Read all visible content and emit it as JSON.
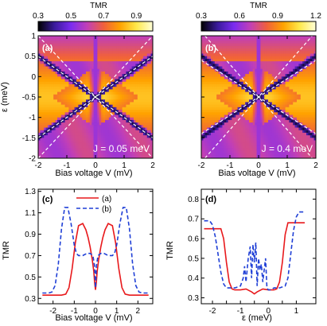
{
  "colors": {
    "colormap": [
      "#000000",
      "#3a1a9c",
      "#7b2cf0",
      "#c23fb6",
      "#f0603c",
      "#ffa200",
      "#ffe84a",
      "#ffffd8"
    ],
    "line_a": "#e8191c",
    "line_b": "#1f3fd6",
    "dashed_overlay": "#ffffff"
  },
  "chart_data": [
    {
      "id": "a",
      "panel_label": "(a)",
      "type": "heatmap",
      "colorbar": {
        "title": "TMR",
        "range": [
          0.3,
          1.0
        ],
        "ticks": [
          "0.3",
          "0.5",
          "0.7",
          "0.9"
        ],
        "tick_values": [
          0.3,
          0.5,
          0.7,
          0.9
        ]
      },
      "xlabel": "Bias voltage V (mV)",
      "ylabel": "ε (meV)",
      "xlim": [
        -2,
        2
      ],
      "ylim": [
        -2,
        1
      ],
      "xticks": [
        {
          "v": -2,
          "t": "-2"
        },
        {
          "v": -1,
          "t": "-1"
        },
        {
          "v": 0,
          "t": "0"
        },
        {
          "v": 1,
          "t": "1"
        },
        {
          "v": 2,
          "t": "2"
        }
      ],
      "yticks": [
        {
          "v": 1,
          "t": "1"
        },
        {
          "v": 0.5,
          "t": "0.5"
        },
        {
          "v": 0,
          "t": "0"
        },
        {
          "v": -0.5,
          "t": "-0.5"
        },
        {
          "v": -1,
          "t": "-1"
        },
        {
          "v": -1.5,
          "t": "-1.5"
        },
        {
          "v": -2,
          "t": "-2"
        }
      ],
      "annotation": "J = 0.05 meV",
      "center_level": -0.5,
      "dashed_lines": [
        {
          "x": [
            -2,
            2
          ],
          "y": [
            -2.0,
            1.0
          ]
        },
        {
          "x": [
            -2,
            2
          ],
          "y": [
            1.0,
            -2.0
          ]
        },
        {
          "x": [
            -2,
            2
          ],
          "y": [
            -1.5,
            0.5
          ]
        },
        {
          "x": [
            -2,
            2
          ],
          "y": [
            0.5,
            -1.5
          ]
        }
      ]
    },
    {
      "id": "b",
      "panel_label": "(b)",
      "type": "heatmap",
      "colorbar": {
        "title": "TMR",
        "range": [
          0.3,
          1.2
        ],
        "ticks": [
          "0.3",
          "0.6",
          "0.9",
          "1.2"
        ],
        "tick_values": [
          0.3,
          0.6,
          0.9,
          1.2
        ]
      },
      "xlabel": "Bias voltage V (mV)",
      "ylabel": "",
      "xlim": [
        -2,
        2
      ],
      "ylim": [
        -2,
        1
      ],
      "xticks": [
        {
          "v": -2,
          "t": "-2"
        },
        {
          "v": -1,
          "t": "-1"
        },
        {
          "v": 0,
          "t": "0"
        },
        {
          "v": 1,
          "t": "1"
        },
        {
          "v": 2,
          "t": "2"
        }
      ],
      "yticks": [],
      "annotation": "J = 0.4 meV",
      "center_level": -0.5,
      "dashed_lines": [
        {
          "x": [
            -2,
            2
          ],
          "y": [
            -2.1,
            1.1
          ]
        },
        {
          "x": [
            -2,
            2
          ],
          "y": [
            1.1,
            -2.1
          ]
        },
        {
          "x": [
            -2,
            2
          ],
          "y": [
            -1.4,
            0.4
          ]
        },
        {
          "x": [
            -2,
            2
          ],
          "y": [
            0.4,
            -1.4
          ]
        }
      ]
    },
    {
      "id": "c",
      "panel_label": "(c)",
      "type": "line",
      "xlabel": "Bias voltage V (mV)",
      "ylabel": "TMR",
      "xlim": [
        -2.7,
        2.7
      ],
      "ylim": [
        0.25,
        1.32
      ],
      "xticks": [
        {
          "v": -2,
          "t": "-2"
        },
        {
          "v": -1,
          "t": "-1"
        },
        {
          "v": 0,
          "t": "0"
        },
        {
          "v": 1,
          "t": "1"
        },
        {
          "v": 2,
          "t": "2"
        }
      ],
      "yticks": [
        {
          "v": 0.3,
          "t": "0.3"
        },
        {
          "v": 0.5,
          "t": "0.5"
        },
        {
          "v": 0.7,
          "t": "0.7"
        },
        {
          "v": 0.9,
          "t": "0.9"
        },
        {
          "v": 1.1,
          "t": "1.1"
        },
        {
          "v": 1.3,
          "t": "1.3"
        }
      ],
      "legend_position": "top-right",
      "series": [
        {
          "name": "(a)",
          "style": "solid",
          "x": [
            -2.5,
            -1.6,
            -1.4,
            -1.25,
            -1.1,
            -0.95,
            -0.8,
            -0.6,
            -0.45,
            -0.35,
            -0.25,
            -0.15,
            -0.08,
            -0.04,
            0.0,
            0.04,
            0.08,
            0.15,
            0.25,
            0.35,
            0.45,
            0.6,
            0.8,
            0.95,
            1.1,
            1.25,
            1.4,
            1.6,
            2.5
          ],
          "y": [
            0.33,
            0.33,
            0.34,
            0.4,
            0.58,
            0.82,
            0.98,
            1.0,
            0.94,
            0.87,
            0.78,
            0.66,
            0.55,
            0.45,
            0.38,
            0.45,
            0.55,
            0.66,
            0.78,
            0.87,
            0.94,
            1.0,
            0.98,
            0.82,
            0.58,
            0.4,
            0.34,
            0.33,
            0.33
          ]
        },
        {
          "name": "(b)",
          "style": "dashed",
          "x": [
            -2.5,
            -2.2,
            -2.05,
            -1.9,
            -1.75,
            -1.6,
            -1.45,
            -1.3,
            -1.15,
            -1.0,
            -0.9,
            -0.8,
            -0.6,
            -0.4,
            -0.25,
            -0.12,
            -0.04,
            0.0,
            0.04,
            0.12,
            0.25,
            0.4,
            0.6,
            0.8,
            0.9,
            1.0,
            1.15,
            1.3,
            1.45,
            1.6,
            1.75,
            1.9,
            2.05,
            2.2,
            2.5
          ],
          "y": [
            0.35,
            0.35,
            0.36,
            0.42,
            0.62,
            0.95,
            1.15,
            1.15,
            1.0,
            0.8,
            0.72,
            0.7,
            0.7,
            0.72,
            0.72,
            0.7,
            0.6,
            0.4,
            0.6,
            0.7,
            0.72,
            0.72,
            0.7,
            0.7,
            0.72,
            0.8,
            1.0,
            1.15,
            1.15,
            0.95,
            0.62,
            0.42,
            0.36,
            0.35,
            0.35
          ]
        }
      ]
    },
    {
      "id": "d",
      "panel_label": "(d)",
      "type": "line",
      "xlabel": "ε (meV)",
      "ylabel": "TMR",
      "xlim": [
        -2.4,
        1.7
      ],
      "ylim": [
        0.27,
        0.85
      ],
      "xticks": [
        {
          "v": -2,
          "t": "-2"
        },
        {
          "v": -1.5,
          "t": "-1.5"
        },
        {
          "v": -1,
          "t": "-1"
        },
        {
          "v": -0.5,
          "t": "-0.5"
        },
        {
          "v": 0,
          "t": "0"
        },
        {
          "v": 0.5,
          "t": "0.5"
        },
        {
          "v": 1,
          "t": "1"
        }
      ],
      "xtick_labels_shown": [
        {
          "v": -2,
          "t": "-2"
        },
        {
          "v": -1,
          "t": "-1"
        },
        {
          "v": 0,
          "t": "0"
        },
        {
          "v": 1,
          "t": "1"
        }
      ],
      "yticks": [
        {
          "v": 0.3,
          "t": "0.3"
        },
        {
          "v": 0.4,
          "t": "0.4"
        },
        {
          "v": 0.5,
          "t": "0.5"
        },
        {
          "v": 0.6,
          "t": "0.6"
        },
        {
          "v": 0.7,
          "t": "0.7"
        },
        {
          "v": 0.8,
          "t": "0.8"
        }
      ],
      "series": [
        {
          "name": "(a)",
          "style": "solid",
          "x": [
            -2.3,
            -1.7,
            -1.6,
            -1.5,
            -1.4,
            -1.3,
            -1.2,
            -1.0,
            -0.8,
            -0.6,
            -0.5,
            -0.4,
            -0.2,
            0.0,
            0.2,
            0.3,
            0.4,
            0.5,
            0.6,
            0.7,
            1.3
          ],
          "y": [
            0.65,
            0.65,
            0.6,
            0.48,
            0.38,
            0.345,
            0.34,
            0.34,
            0.345,
            0.33,
            0.32,
            0.33,
            0.345,
            0.34,
            0.34,
            0.345,
            0.38,
            0.48,
            0.62,
            0.68,
            0.68
          ]
        },
        {
          "name": "(b)",
          "style": "dashed",
          "x": [
            -2.3,
            -2.1,
            -2.0,
            -1.9,
            -1.8,
            -1.7,
            -1.6,
            -1.5,
            -1.4,
            -1.2,
            -1.0,
            -0.9,
            -0.85,
            -0.8,
            -0.72,
            -0.65,
            -0.6,
            -0.55,
            -0.5,
            -0.45,
            -0.4,
            -0.35,
            -0.3,
            -0.25,
            -0.2,
            -0.15,
            -0.1,
            -0.05,
            0.0,
            0.1,
            0.2,
            0.4,
            0.6,
            0.7,
            0.8,
            0.9,
            1.0,
            1.1,
            1.3
          ],
          "y": [
            0.69,
            0.69,
            0.67,
            0.61,
            0.52,
            0.43,
            0.37,
            0.35,
            0.35,
            0.35,
            0.36,
            0.4,
            0.46,
            0.38,
            0.5,
            0.56,
            0.4,
            0.57,
            0.48,
            0.58,
            0.36,
            0.5,
            0.44,
            0.47,
            0.38,
            0.44,
            0.5,
            0.35,
            0.34,
            0.34,
            0.35,
            0.35,
            0.36,
            0.4,
            0.52,
            0.64,
            0.71,
            0.735,
            0.735
          ]
        }
      ]
    }
  ]
}
